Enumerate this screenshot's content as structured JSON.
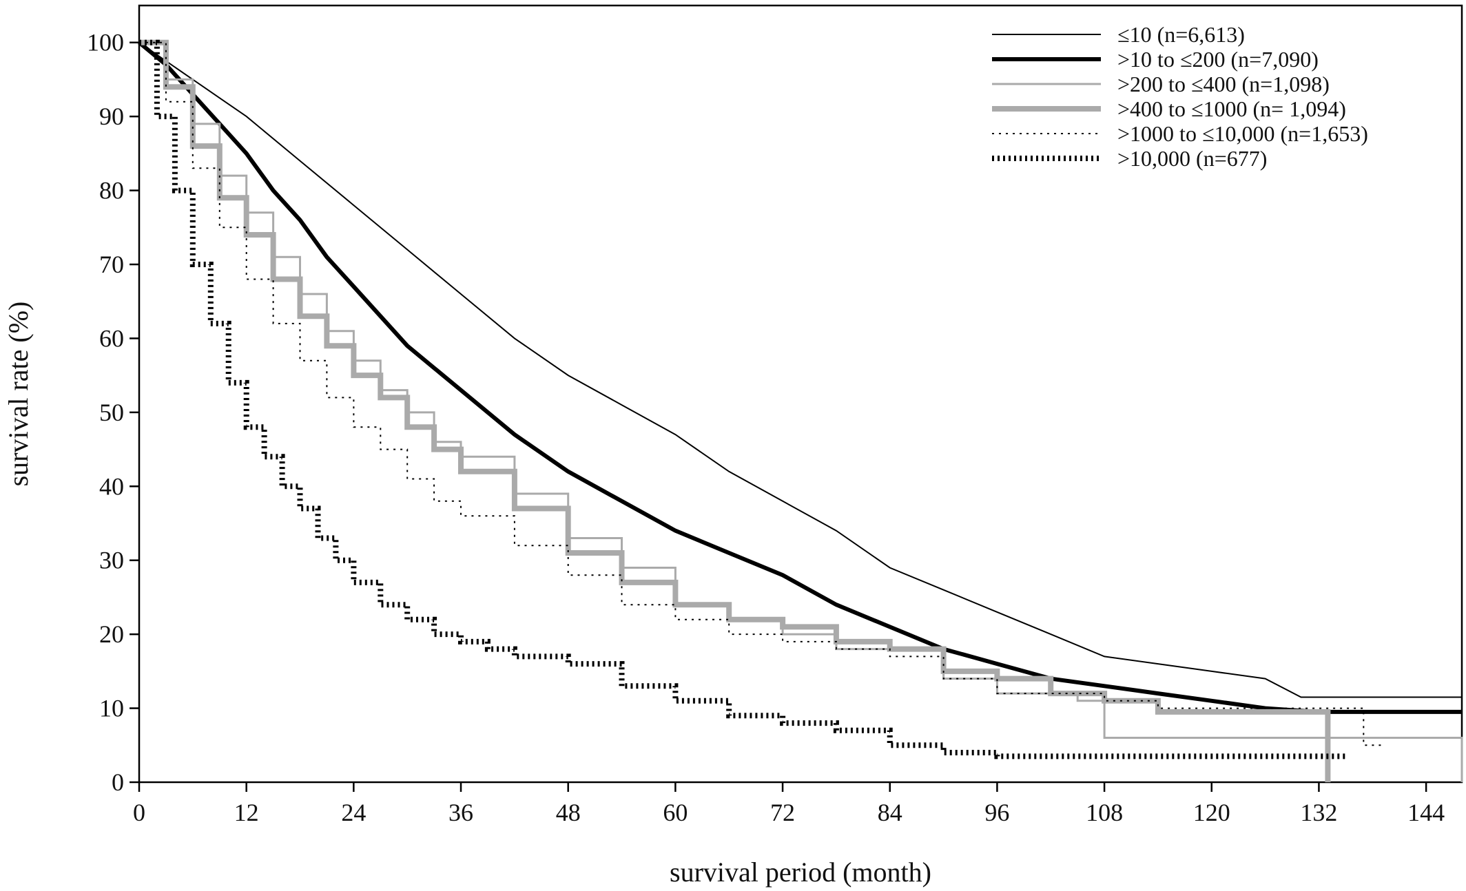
{
  "chart_data": {
    "type": "line",
    "xlabel": "survival period (month)",
    "ylabel": "survival rate (%)",
    "xlim": [
      0,
      148
    ],
    "ylim": [
      0,
      105
    ],
    "xticks": [
      "0",
      "12",
      "24",
      "36",
      "48",
      "60",
      "72",
      "84",
      "96",
      "108",
      "120",
      "132",
      "144"
    ],
    "yticks": [
      "0",
      "10",
      "20",
      "30",
      "40",
      "50",
      "60",
      "70",
      "80",
      "90",
      "100"
    ],
    "legend_position": "top-right",
    "series": [
      {
        "name": "≤10 (n=6,613)",
        "style": {
          "color": "#000000",
          "width": 2,
          "dash": "none",
          "step": false
        },
        "points": [
          [
            0,
            100
          ],
          [
            3,
            97.5
          ],
          [
            6,
            95
          ],
          [
            9,
            92.5
          ],
          [
            12,
            90
          ],
          [
            18,
            84
          ],
          [
            24,
            78
          ],
          [
            30,
            72
          ],
          [
            36,
            66
          ],
          [
            42,
            60
          ],
          [
            48,
            55
          ],
          [
            54,
            51
          ],
          [
            60,
            47
          ],
          [
            66,
            42
          ],
          [
            72,
            38
          ],
          [
            78,
            34
          ],
          [
            84,
            29
          ],
          [
            90,
            26
          ],
          [
            96,
            23
          ],
          [
            102,
            20
          ],
          [
            108,
            17
          ],
          [
            114,
            16
          ],
          [
            120,
            15
          ],
          [
            126,
            14
          ],
          [
            130,
            11.5
          ],
          [
            148,
            11.5
          ]
        ]
      },
      {
        "name": ">10 to ≤200 (n=7,090)",
        "style": {
          "color": "#000000",
          "width": 6,
          "dash": "none",
          "step": false
        },
        "points": [
          [
            0,
            100
          ],
          [
            3,
            97
          ],
          [
            6,
            93
          ],
          [
            9,
            89
          ],
          [
            12,
            85
          ],
          [
            15,
            80
          ],
          [
            18,
            76
          ],
          [
            21,
            71
          ],
          [
            24,
            67
          ],
          [
            27,
            63
          ],
          [
            30,
            59
          ],
          [
            33,
            56
          ],
          [
            36,
            53
          ],
          [
            42,
            47
          ],
          [
            48,
            42
          ],
          [
            54,
            38
          ],
          [
            60,
            34
          ],
          [
            66,
            31
          ],
          [
            72,
            28
          ],
          [
            78,
            24
          ],
          [
            84,
            21
          ],
          [
            90,
            18
          ],
          [
            96,
            16
          ],
          [
            102,
            14
          ],
          [
            108,
            13
          ],
          [
            114,
            12
          ],
          [
            120,
            11
          ],
          [
            126,
            10
          ],
          [
            132,
            9.5
          ],
          [
            148,
            9.5
          ]
        ]
      },
      {
        "name": ">200 to ≤400 (n=1,098)",
        "style": {
          "color": "#aaaaaa",
          "width": 3,
          "dash": "none",
          "step": true
        },
        "points": [
          [
            0,
            100
          ],
          [
            3,
            95
          ],
          [
            6,
            89
          ],
          [
            9,
            82
          ],
          [
            12,
            77
          ],
          [
            15,
            71
          ],
          [
            18,
            66
          ],
          [
            21,
            61
          ],
          [
            24,
            57
          ],
          [
            27,
            53
          ],
          [
            30,
            50
          ],
          [
            33,
            46
          ],
          [
            36,
            44
          ],
          [
            42,
            39
          ],
          [
            48,
            33
          ],
          [
            54,
            29
          ],
          [
            60,
            24
          ],
          [
            66,
            22
          ],
          [
            72,
            20
          ],
          [
            78,
            18
          ],
          [
            84,
            18
          ],
          [
            90,
            14
          ],
          [
            96,
            12
          ],
          [
            102,
            12
          ],
          [
            105,
            11
          ],
          [
            108,
            6
          ],
          [
            148,
            6
          ],
          [
            148,
            0
          ]
        ]
      },
      {
        "name": ">400 to ≤1000 (n= 1,094)",
        "style": {
          "color": "#aaaaaa",
          "width": 8,
          "dash": "none",
          "step": true
        },
        "points": [
          [
            0,
            100
          ],
          [
            3,
            94
          ],
          [
            6,
            86
          ],
          [
            9,
            79
          ],
          [
            12,
            74
          ],
          [
            15,
            68
          ],
          [
            18,
            63
          ],
          [
            21,
            59
          ],
          [
            24,
            55
          ],
          [
            27,
            52
          ],
          [
            30,
            48
          ],
          [
            33,
            45
          ],
          [
            36,
            42
          ],
          [
            42,
            37
          ],
          [
            48,
            31
          ],
          [
            54,
            27
          ],
          [
            60,
            24
          ],
          [
            66,
            22
          ],
          [
            72,
            21
          ],
          [
            78,
            19
          ],
          [
            84,
            18
          ],
          [
            90,
            15
          ],
          [
            96,
            14
          ],
          [
            102,
            12
          ],
          [
            108,
            11
          ],
          [
            114,
            9.5
          ],
          [
            126,
            9.5
          ],
          [
            132,
            9.5
          ],
          [
            133,
            0
          ]
        ]
      },
      {
        "name": ">1000 to ≤10,000 (n=1,653)",
        "style": {
          "color": "#000000",
          "width": 2,
          "dash": "3 7",
          "step": true
        },
        "points": [
          [
            0,
            100
          ],
          [
            3,
            92
          ],
          [
            6,
            83
          ],
          [
            9,
            75
          ],
          [
            12,
            68
          ],
          [
            15,
            62
          ],
          [
            18,
            57
          ],
          [
            21,
            52
          ],
          [
            24,
            48
          ],
          [
            27,
            45
          ],
          [
            30,
            41
          ],
          [
            33,
            38
          ],
          [
            36,
            36
          ],
          [
            42,
            32
          ],
          [
            48,
            28
          ],
          [
            54,
            24
          ],
          [
            60,
            22
          ],
          [
            66,
            20
          ],
          [
            72,
            19
          ],
          [
            78,
            18
          ],
          [
            84,
            17
          ],
          [
            90,
            14
          ],
          [
            96,
            12
          ],
          [
            102,
            12
          ],
          [
            108,
            11
          ],
          [
            114,
            10
          ],
          [
            120,
            10
          ],
          [
            126,
            10
          ],
          [
            132,
            10
          ],
          [
            137,
            9
          ],
          [
            137,
            5
          ],
          [
            139,
            4.5
          ]
        ]
      },
      {
        "name": ">10,000 (n=677)",
        "style": {
          "color": "#000000",
          "width": 8,
          "dash": "3 5",
          "step": true
        },
        "points": [
          [
            0,
            100
          ],
          [
            2,
            90
          ],
          [
            4,
            80
          ],
          [
            6,
            70
          ],
          [
            8,
            62
          ],
          [
            10,
            54
          ],
          [
            12,
            48
          ],
          [
            14,
            44
          ],
          [
            16,
            40
          ],
          [
            18,
            37
          ],
          [
            20,
            33
          ],
          [
            22,
            30
          ],
          [
            24,
            27
          ],
          [
            27,
            24
          ],
          [
            30,
            22
          ],
          [
            33,
            20
          ],
          [
            36,
            19
          ],
          [
            39,
            18
          ],
          [
            42,
            17
          ],
          [
            48,
            16
          ],
          [
            54,
            13
          ],
          [
            60,
            11
          ],
          [
            66,
            9
          ],
          [
            72,
            8
          ],
          [
            78,
            7
          ],
          [
            84,
            5
          ],
          [
            90,
            4
          ],
          [
            96,
            3.5
          ],
          [
            108,
            3.5
          ],
          [
            120,
            3.5
          ],
          [
            130,
            3.5
          ],
          [
            135,
            3.5
          ]
        ]
      }
    ]
  }
}
